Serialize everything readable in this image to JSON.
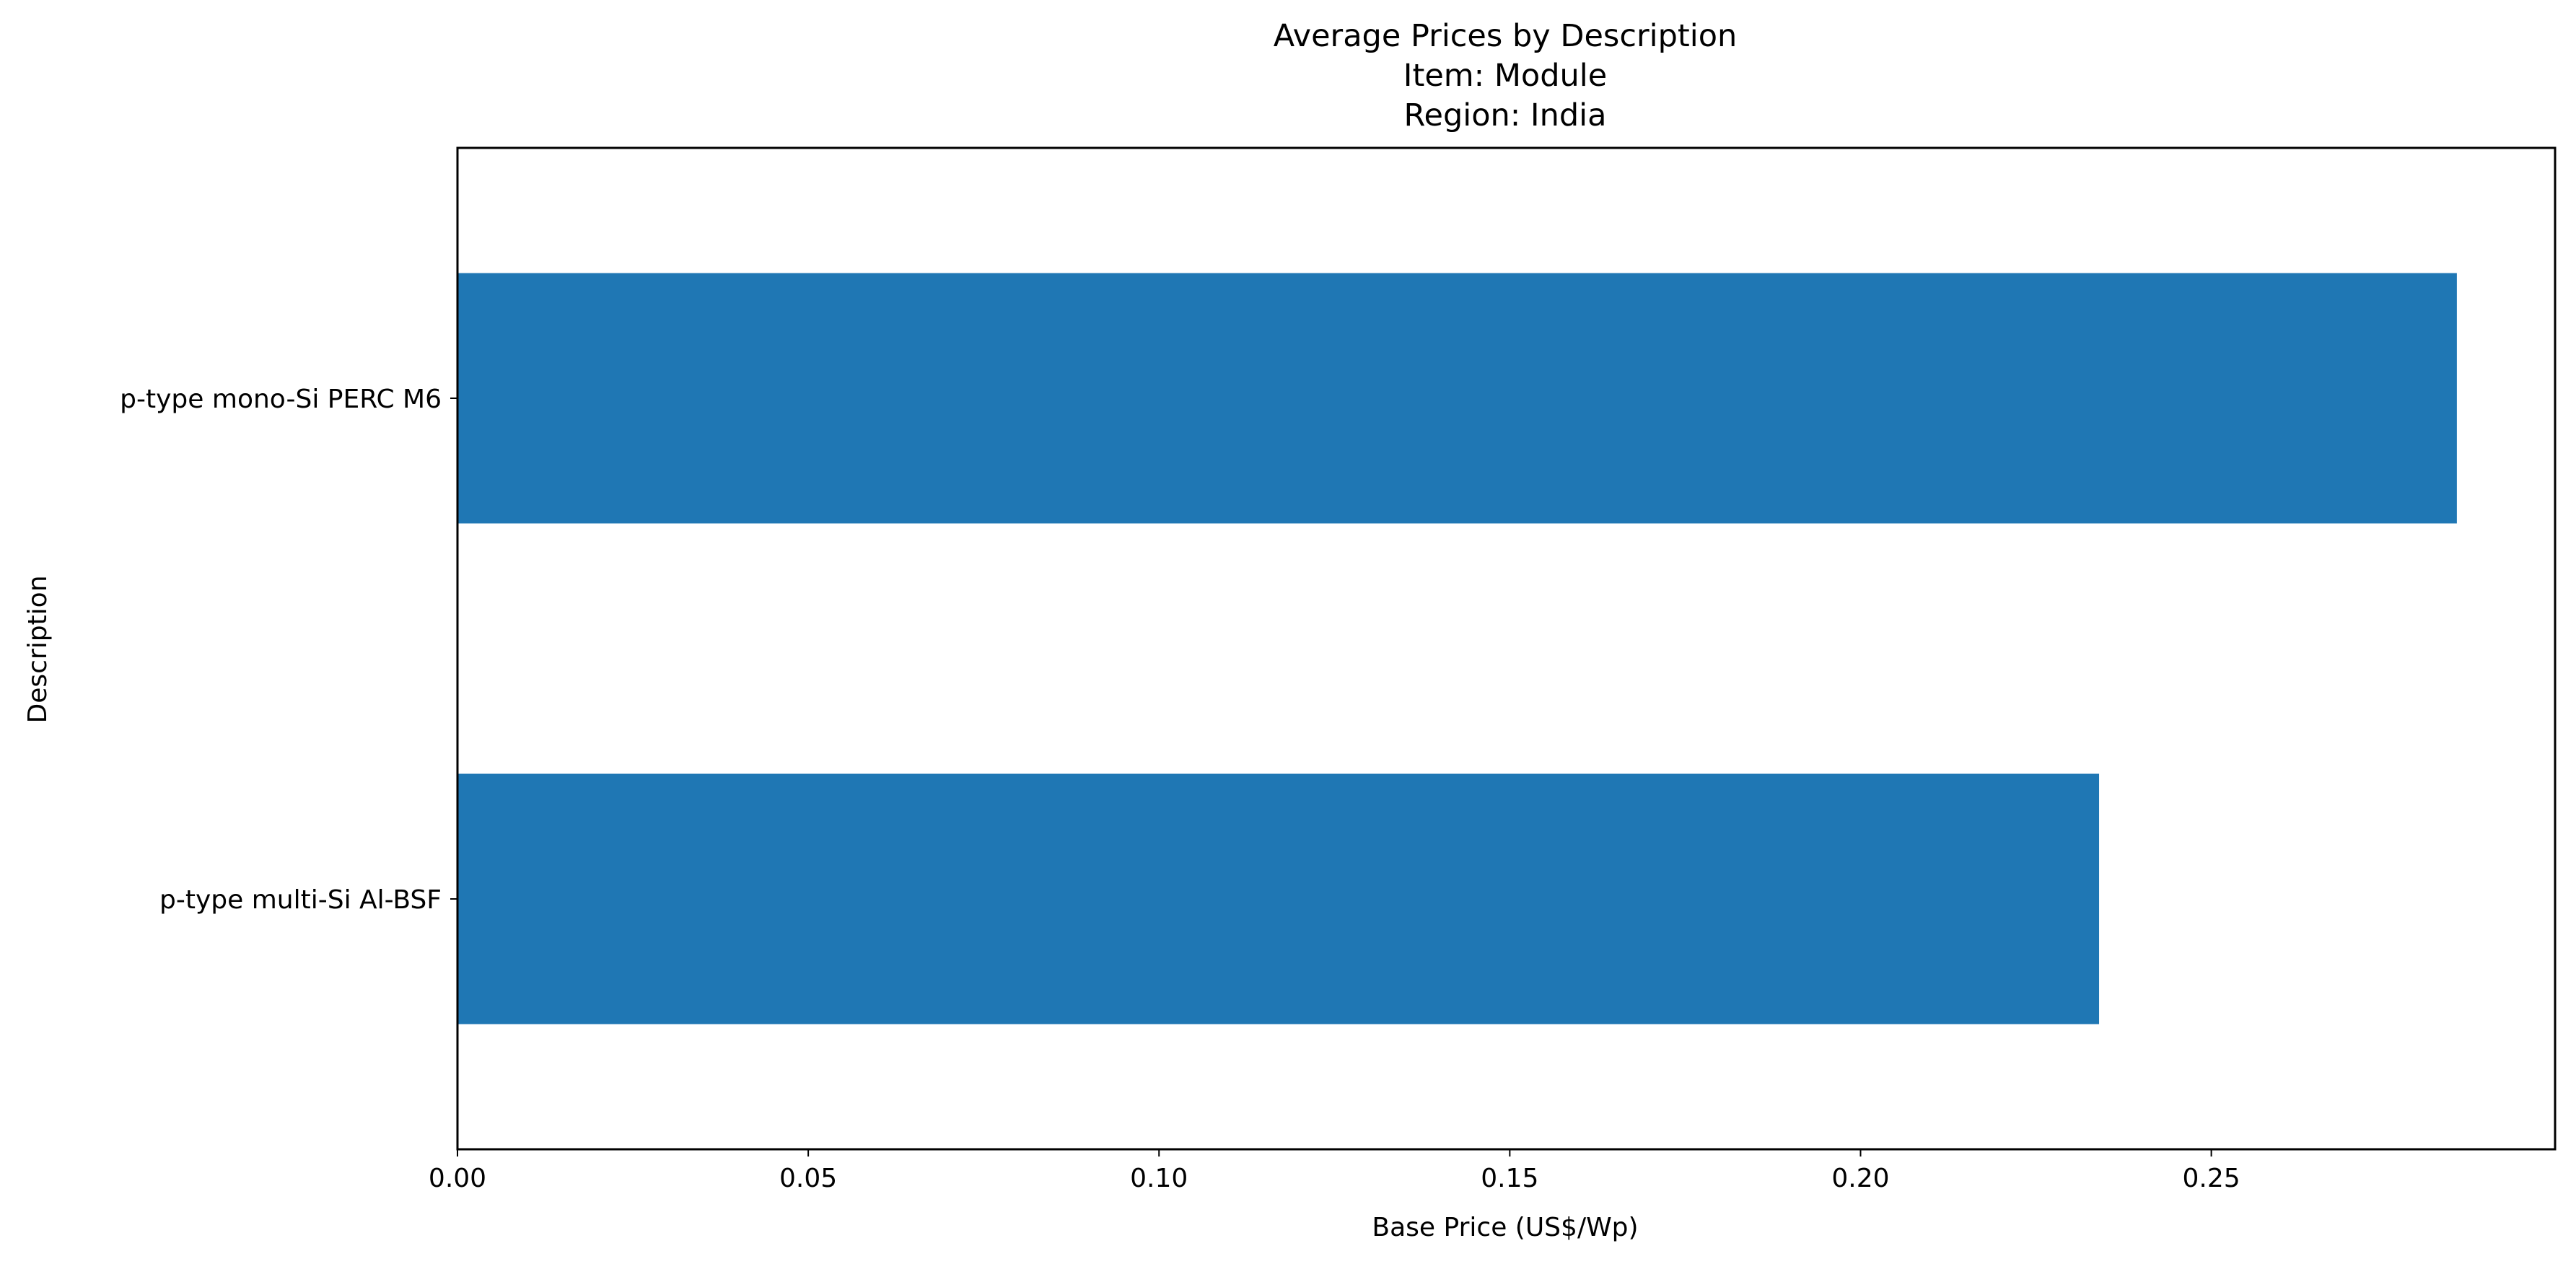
{
  "chart_data": {
    "type": "bar",
    "orientation": "horizontal",
    "title_lines": [
      "Average Prices by Description",
      "Item: Module",
      "Region: India"
    ],
    "xlabel": "Base Price (US$/Wp)",
    "ylabel": "Description",
    "categories": [
      "p-type mono-Si PERC M6",
      "p-type multi-Si Al-BSF"
    ],
    "values": [
      0.285,
      0.234
    ],
    "xlim": [
      0,
      0.299
    ],
    "xticks": [
      0.0,
      0.05,
      0.1,
      0.15,
      0.2,
      0.25
    ],
    "xtick_labels": [
      "0.00",
      "0.05",
      "0.10",
      "0.15",
      "0.20",
      "0.25"
    ],
    "bar_color": "#1f77b4",
    "grid": false,
    "legend": "none"
  }
}
